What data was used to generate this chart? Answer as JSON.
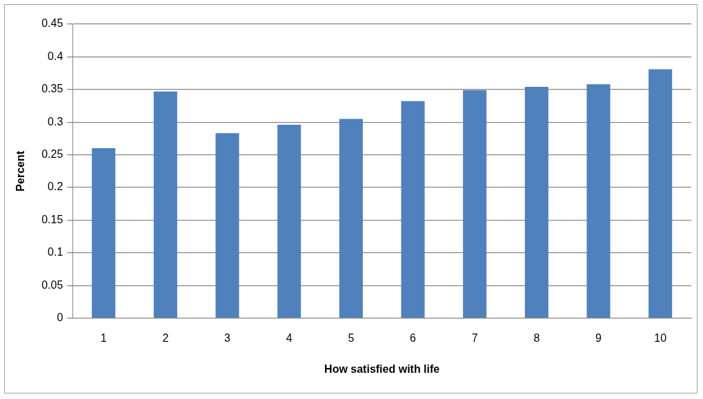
{
  "chart_data": {
    "type": "bar",
    "xlabel": "How satisfied with life",
    "ylabel": "Percent",
    "categories": [
      "1",
      "2",
      "3",
      "4",
      "5",
      "6",
      "7",
      "8",
      "9",
      "10"
    ],
    "values": [
      0.26,
      0.347,
      0.283,
      0.296,
      0.305,
      0.332,
      0.349,
      0.354,
      0.358,
      0.381
    ],
    "color": "#4f81bd",
    "ylim": [
      0,
      0.45
    ],
    "yticks": [
      0,
      0.05,
      0.1,
      0.15,
      0.2,
      0.25,
      0.3,
      0.35,
      0.4,
      0.45
    ],
    "grid": "y",
    "legend": false
  }
}
